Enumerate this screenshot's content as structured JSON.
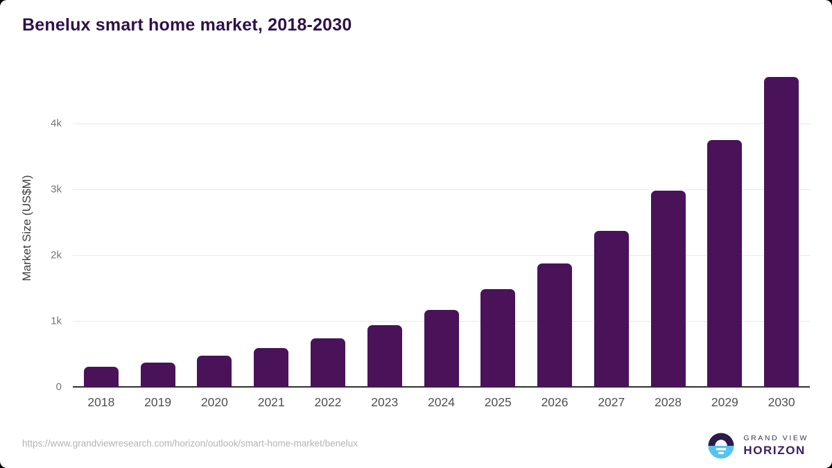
{
  "title": "Benelux smart home market, 2018-2030",
  "chart_data": {
    "type": "bar",
    "title": "Benelux smart home market, 2018-2030",
    "categories": [
      "2018",
      "2019",
      "2020",
      "2021",
      "2022",
      "2023",
      "2024",
      "2025",
      "2026",
      "2027",
      "2028",
      "2029",
      "2030"
    ],
    "values": [
      305,
      370,
      470,
      590,
      735,
      935,
      1170,
      1480,
      1875,
      2365,
      2980,
      3745,
      4705
    ],
    "xlabel": "",
    "ylabel": "Market Size (US$M)",
    "ylim": [
      0,
      4820
    ],
    "yticks": [
      {
        "value": 0,
        "label": "0"
      },
      {
        "value": 1000,
        "label": "1k"
      },
      {
        "value": 2000,
        "label": "2k"
      },
      {
        "value": 3000,
        "label": "3k"
      },
      {
        "value": 4000,
        "label": "4k"
      }
    ],
    "grid": true,
    "legend": false,
    "bar_color": "#4a1259",
    "gridline_color": "#e9e9e9",
    "axis_line_color": "#2f2f2f"
  },
  "footer": {
    "source_url": "https://www.grandviewresearch.com/horizon/outlook/smart-home-market/benelux"
  },
  "logo": {
    "line1": "GRAND VIEW",
    "line2": "HORIZON",
    "colors": {
      "dark": "#2e1a47",
      "blue": "#56c3ef"
    }
  }
}
